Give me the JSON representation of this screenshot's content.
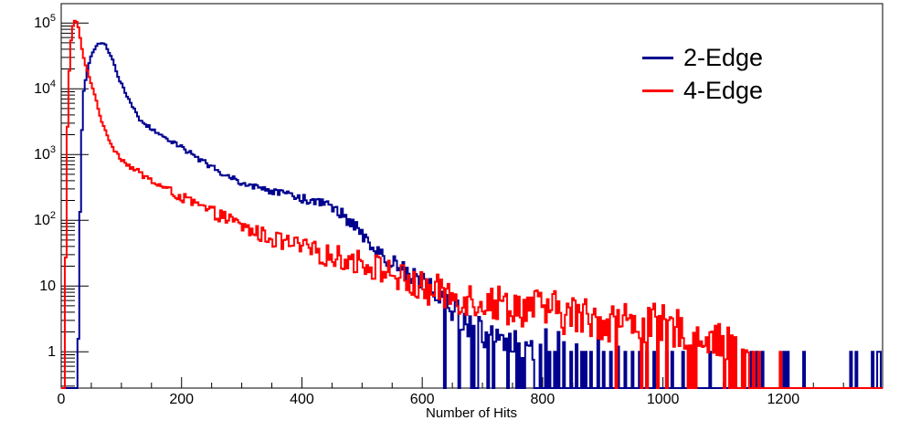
{
  "chart_data": {
    "type": "line",
    "subtype": "step-histogram-log-y",
    "title": "",
    "xlabel": "Number of Hits",
    "ylabel": "",
    "background": "#ffffff",
    "frame_color": "#000000",
    "xlim": [
      0,
      1365
    ],
    "ylim": [
      0.28,
      197000
    ],
    "x_major_ticks": [
      0,
      200,
      400,
      600,
      800,
      1000,
      1200
    ],
    "x_minor_step": 50,
    "y_decade_ticks": [
      1,
      10,
      100,
      1000,
      10000,
      100000
    ],
    "y_tick_labels": [
      {
        "value": 1,
        "text": "1"
      },
      {
        "value": 10,
        "text": "10"
      },
      {
        "value": 100,
        "base": "10",
        "exp": "2"
      },
      {
        "value": 1000,
        "base": "10",
        "exp": "3"
      },
      {
        "value": 10000,
        "base": "10",
        "exp": "4"
      },
      {
        "value": 100000,
        "base": "10",
        "exp": "5"
      }
    ],
    "grid": false,
    "legend": {
      "position": "top-right",
      "entries": [
        {
          "label": "2-Edge",
          "color": "#00008f"
        },
        {
          "label": "4-Edge",
          "color": "#ff0000"
        }
      ]
    },
    "series": [
      {
        "name": "2-Edge",
        "color": "#00008f",
        "bin_width": 3,
        "seed": 42,
        "domain": [
          26,
          795
        ],
        "anchors": [
          [
            26,
            0.3
          ],
          [
            29,
            40
          ],
          [
            32,
            1500
          ],
          [
            36,
            9000
          ],
          [
            40,
            16000
          ],
          [
            44,
            24000
          ],
          [
            50,
            34000
          ],
          [
            57,
            44000
          ],
          [
            64,
            51000
          ],
          [
            72,
            46000
          ],
          [
            80,
            34000
          ],
          [
            88,
            21000
          ],
          [
            95,
            14000
          ],
          [
            103,
            9800
          ],
          [
            110,
            7200
          ],
          [
            120,
            4800
          ],
          [
            130,
            3300
          ],
          [
            150,
            2400
          ],
          [
            160,
            2100
          ],
          [
            180,
            1600
          ],
          [
            200,
            1250
          ],
          [
            220,
            950
          ],
          [
            240,
            720
          ],
          [
            260,
            560
          ],
          [
            277,
            465
          ],
          [
            300,
            365
          ],
          [
            320,
            315
          ],
          [
            353,
            272
          ],
          [
            380,
            238
          ],
          [
            400,
            210
          ],
          [
            420,
            192
          ],
          [
            440,
            168
          ],
          [
            455,
            142
          ],
          [
            470,
            112
          ],
          [
            485,
            82
          ],
          [
            500,
            60
          ],
          [
            515,
            42
          ],
          [
            530,
            30
          ],
          [
            545,
            23
          ],
          [
            560,
            18
          ],
          [
            580,
            14
          ],
          [
            600,
            12
          ],
          [
            620,
            8
          ],
          [
            640,
            5
          ],
          [
            660,
            3.5
          ],
          [
            680,
            2.5
          ],
          [
            700,
            1.8
          ],
          [
            730,
            1.3
          ],
          [
            795,
            1
          ]
        ],
        "noise_decades": [
          [
            0,
            0.012
          ],
          [
            100,
            0.02
          ],
          [
            200,
            0.035
          ],
          [
            300,
            0.05
          ],
          [
            400,
            0.07
          ],
          [
            450,
            0.09
          ],
          [
            500,
            0.11
          ],
          [
            550,
            0.14
          ],
          [
            600,
            0.18
          ],
          [
            700,
            0.24
          ],
          [
            795,
            0.28
          ]
        ],
        "gap_probability": [
          [
            0,
            0
          ],
          [
            610,
            0
          ],
          [
            635,
            0.1
          ],
          [
            665,
            0.22
          ],
          [
            695,
            0.3
          ],
          [
            740,
            0.28
          ],
          [
            795,
            0.45
          ]
        ],
        "spikes": [
          [
            805,
            2.2
          ],
          [
            812,
            1
          ],
          [
            820,
            1
          ],
          [
            827,
            2
          ],
          [
            834,
            1.4
          ],
          [
            848,
            1
          ],
          [
            856,
            1.3
          ],
          [
            864,
            1
          ],
          [
            872,
            1
          ],
          [
            881,
            1
          ],
          [
            891,
            1.6
          ],
          [
            902,
            1
          ],
          [
            913,
            1
          ],
          [
            924,
            1.2
          ],
          [
            936,
            1
          ],
          [
            948,
            1
          ],
          [
            960,
            1
          ],
          [
            973,
            1
          ],
          [
            985,
            1
          ],
          [
            1006,
            1
          ],
          [
            1014,
            1
          ],
          [
            1034,
            1
          ],
          [
            1077,
            1
          ],
          [
            1148,
            1
          ],
          [
            1157,
            1
          ],
          [
            1165,
            1
          ],
          [
            1201,
            1
          ],
          [
            1208,
            1
          ],
          [
            1233,
            1
          ],
          [
            1311,
            1
          ],
          [
            1321,
            1
          ],
          [
            1349,
            1
          ],
          [
            1356,
            1
          ],
          [
            1360,
            1
          ]
        ]
      },
      {
        "name": "4-Edge",
        "color": "#ff0000",
        "bin_width": 3,
        "seed": 1234,
        "domain": [
          4,
          1145
        ],
        "anchors": [
          [
            4,
            0.3
          ],
          [
            5,
            2.4
          ],
          [
            7,
            300
          ],
          [
            10,
            8000
          ],
          [
            14,
            45000
          ],
          [
            18,
            92000
          ],
          [
            22,
            112000
          ],
          [
            26,
            95000
          ],
          [
            30,
            60000
          ],
          [
            35,
            31000
          ],
          [
            40,
            21000
          ],
          [
            50,
            11000
          ],
          [
            57,
            6500
          ],
          [
            68,
            2700
          ],
          [
            85,
            1250
          ],
          [
            100,
            830
          ],
          [
            115,
            640
          ],
          [
            130,
            515
          ],
          [
            150,
            390
          ],
          [
            175,
            290
          ],
          [
            200,
            220
          ],
          [
            240,
            145
          ],
          [
            277,
            103
          ],
          [
            310,
            72
          ],
          [
            355,
            50
          ],
          [
            400,
            38
          ],
          [
            430,
            31
          ],
          [
            470,
            26
          ],
          [
            505,
            22
          ],
          [
            545,
            16
          ],
          [
            570,
            12
          ],
          [
            600,
            9
          ],
          [
            650,
            7.2
          ],
          [
            700,
            6
          ],
          [
            750,
            5
          ],
          [
            800,
            4.4
          ],
          [
            850,
            3.6
          ],
          [
            900,
            3
          ],
          [
            950,
            2.8
          ],
          [
            1000,
            2.5
          ],
          [
            1050,
            2
          ],
          [
            1100,
            1.4
          ],
          [
            1145,
            1
          ]
        ],
        "noise_decades": [
          [
            0,
            0.008
          ],
          [
            50,
            0.015
          ],
          [
            100,
            0.035
          ],
          [
            150,
            0.055
          ],
          [
            200,
            0.075
          ],
          [
            300,
            0.11
          ],
          [
            400,
            0.15
          ],
          [
            500,
            0.2
          ],
          [
            600,
            0.26
          ],
          [
            800,
            0.32
          ],
          [
            1000,
            0.32
          ],
          [
            1145,
            0.22
          ]
        ],
        "gap_probability": [
          [
            0,
            0
          ],
          [
            840,
            0
          ],
          [
            900,
            0.08
          ],
          [
            980,
            0.14
          ],
          [
            1060,
            0.2
          ],
          [
            1145,
            0.25
          ]
        ],
        "spikes": [
          [
            1150,
            1
          ],
          [
            1160,
            1
          ],
          [
            1194,
            1
          ]
        ]
      }
    ],
    "notable_features": {
      "blue_peak": {
        "x": 64,
        "y": 51000
      },
      "red_peak": {
        "x": 22,
        "y": 112000
      },
      "blue_shoulder": {
        "x_range": [
          380,
          460
        ],
        "y_approx": 200
      },
      "blue_tail_end": 1360,
      "red_tail_end": 1194
    }
  }
}
